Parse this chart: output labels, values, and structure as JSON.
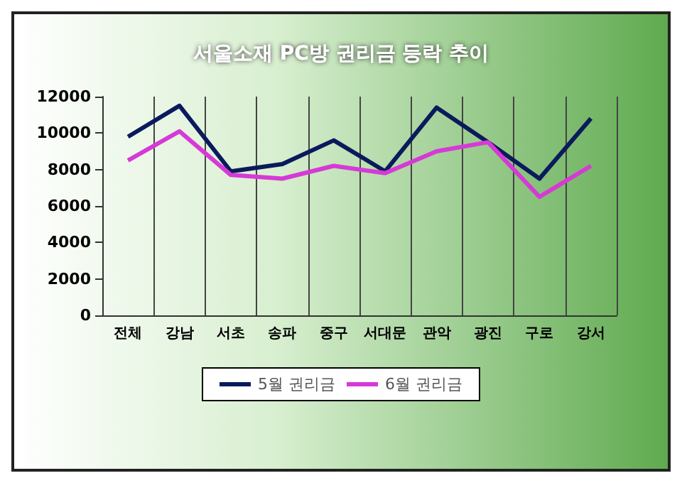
{
  "chart_data": {
    "type": "line",
    "title": "서울소재 PC방 권리금 등락 추이",
    "categories": [
      "전체",
      "강남",
      "서초",
      "송파",
      "중구",
      "서대문",
      "관악",
      "광진",
      "구로",
      "강서"
    ],
    "series": [
      {
        "name": "5월 권리금",
        "color": "#0a1a5c",
        "values": [
          9800,
          11500,
          7900,
          8300,
          9600,
          7900,
          11400,
          9500,
          7500,
          10800
        ]
      },
      {
        "name": "6월 권리금",
        "color": "#d63ad6",
        "values": [
          8500,
          10100,
          7700,
          7500,
          8200,
          7800,
          9000,
          9500,
          6500,
          8200
        ]
      }
    ],
    "ylim": [
      0,
      12000
    ],
    "yticks": [
      0,
      2000,
      4000,
      6000,
      8000,
      10000,
      12000
    ],
    "grid": "x",
    "legend": "bottom",
    "marker": "none",
    "line_style": "solid"
  }
}
